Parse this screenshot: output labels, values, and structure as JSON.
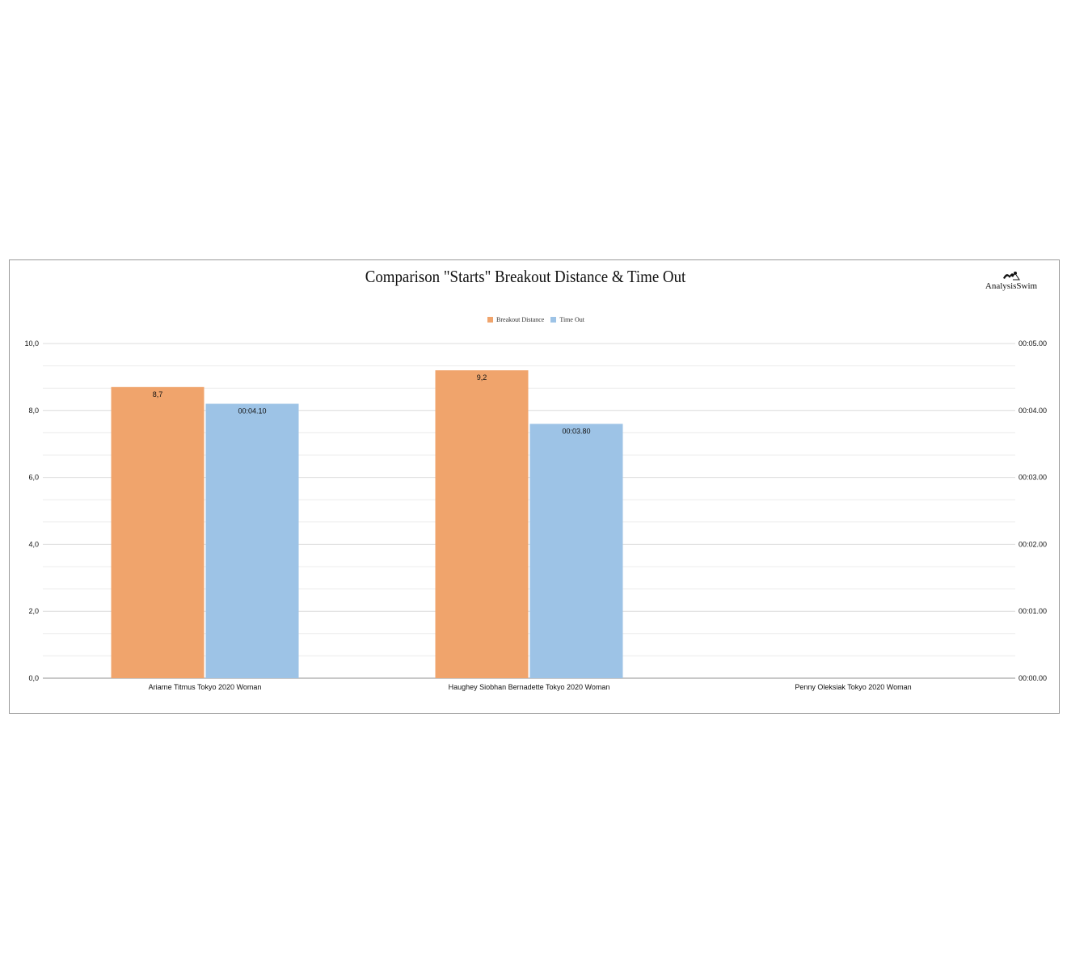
{
  "chart_data": {
    "type": "bar",
    "title": "Comparison \"Starts\" Breakout Distance & Time Out",
    "categories": [
      "Ariarne Titmus Tokyo 2020 Woman",
      "Haughey Siobhan Bernadette Tokyo 2020 Woman",
      "Penny Oleksiak Tokyo 2020 Woman"
    ],
    "series": [
      {
        "name": "Breakout Distance",
        "axis": "left",
        "values": [
          8.7,
          9.2,
          null
        ],
        "labels": [
          "8,7",
          "9,2",
          ""
        ],
        "color": "#f0a46c"
      },
      {
        "name": "Time Out",
        "axis": "right",
        "values": [
          4.1,
          3.8,
          null
        ],
        "labels": [
          "00:04.10",
          "00:03.80",
          ""
        ],
        "color": "#9dc3e6"
      }
    ],
    "ylim": [
      0,
      10
    ],
    "y_ticks": [
      "0,0",
      "2,0",
      "4,0",
      "6,0",
      "8,0",
      "10,0"
    ],
    "y2lim_seconds": [
      0,
      5
    ],
    "y2_ticks": [
      "00:00.00",
      "00:01.00",
      "00:02.00",
      "00:03.00",
      "00:04.00",
      "00:05.00"
    ],
    "legend_position": "top-center",
    "grid": true
  },
  "brand": {
    "logo_text": "AnalysisSwim"
  }
}
